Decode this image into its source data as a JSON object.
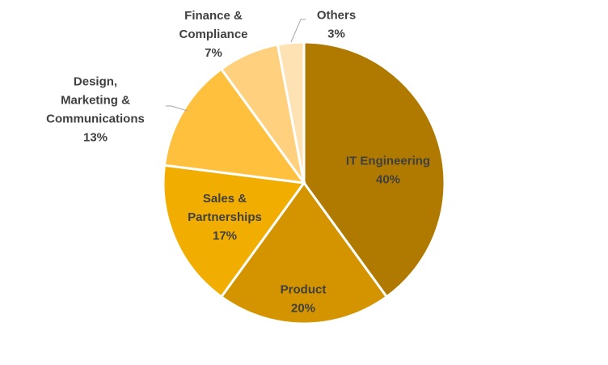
{
  "chart_data": {
    "type": "pie",
    "title": "",
    "slices": [
      {
        "label": [
          "IT Engineering"
        ],
        "value": 40,
        "value_label": "40%",
        "color": "#B07A00"
      },
      {
        "label": [
          "Product"
        ],
        "value": 20,
        "value_label": "20%",
        "color": "#D39400"
      },
      {
        "label": [
          "Sales &",
          "Partnerships"
        ],
        "value": 17,
        "value_label": "17%",
        "color": "#F2AE00"
      },
      {
        "label": [
          "Design,",
          "Marketing &",
          "Communications"
        ],
        "value": 13,
        "value_label": "13%",
        "color": "#FFC13D"
      },
      {
        "label": [
          "Finance &",
          "Compliance"
        ],
        "value": 7,
        "value_label": "7%",
        "color": "#FFD17E"
      },
      {
        "label": [
          "Others"
        ],
        "value": 3,
        "value_label": "3%",
        "color": "#FFE2B4"
      }
    ]
  }
}
